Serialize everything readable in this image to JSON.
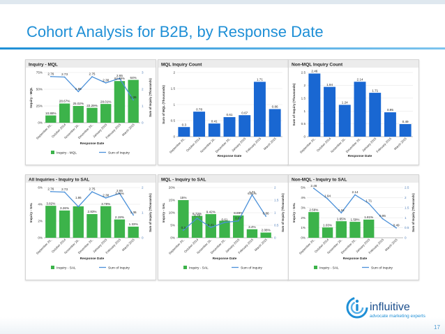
{
  "slide": {
    "title": "Cohort Analysis for B2B, by Response Date",
    "page_number": "17",
    "logo_name": "influitive",
    "logo_tagline": "advocate marketing experts",
    "logo_icon": "influitive-swirl-icon",
    "colors": {
      "title": "#1e8fd6",
      "bar_green": "#3cb34a",
      "bar_blue": "#1967d2",
      "line_blue": "#4a90d9",
      "header_grey": "#cccccc"
    }
  },
  "chart_data": [
    {
      "id": "inquiry-mql",
      "type": "bar",
      "title": "Inquiry - MQL",
      "xlabel": "Response Date",
      "ylabel": "Inquiry - MQL",
      "y2label": "Sum of Inquiry (Thousands)",
      "categories": [
        "September 20..",
        "October 2014",
        "November 20..",
        "December 20..",
        "January 2015",
        "February 2015",
        "March 2015"
      ],
      "bar_series": {
        "name": "Inquiry - MQL",
        "values": [
          10.88,
          28.67,
          25.02,
          22.29,
          28.01,
          62.28,
          64.0
        ],
        "labels": [
          "10.88%",
          "28.67%",
          "25.02%",
          "22.29%",
          "28.01%",
          "",
          "64%"
        ]
      },
      "line_series": {
        "name": "Sum of Inquiry",
        "values": [
          2.76,
          2.73,
          1.86,
          2.75,
          2.38,
          2.65,
          1.36
        ],
        "labels": [
          "2.76",
          "2.73",
          "1.86",
          "2.75",
          "2.38",
          "2.65",
          "1.36"
        ]
      },
      "yticks": [
        "0%",
        "25%",
        "50%",
        "75%"
      ],
      "ylim": [
        0,
        75
      ],
      "y2ticks": [
        "0",
        "1",
        "2",
        "3"
      ],
      "y2lim": [
        0,
        3
      ],
      "extra_labels": [
        "62.28%"
      ],
      "legend": "bottom"
    },
    {
      "id": "mql-inquiry-count",
      "type": "bar",
      "title": "MQL Inquiry Count",
      "xlabel": "Response Date",
      "ylabel": "Sum of MQL (Thousands)",
      "categories": [
        "September 20..",
        "October 2014",
        "November 20..",
        "December 20..",
        "January 2015",
        "February 2015",
        "March 2015"
      ],
      "bar_series": {
        "name": "MQL",
        "values": [
          0.3,
          0.78,
          0.41,
          0.61,
          0.67,
          1.71,
          0.86
        ],
        "labels": [
          "0.3",
          "0.78",
          "0.41",
          "0.61",
          "0.67",
          "1.71",
          "0.86"
        ]
      },
      "yticks": [
        "0",
        "0.5",
        "1",
        "1.5",
        "2"
      ],
      "ylim": [
        0,
        2
      ]
    },
    {
      "id": "non-mql-inquiry-count",
      "type": "bar",
      "title": "Non-MQL Inquiry Count",
      "xlabel": "Response Date",
      "ylabel": "Sum of Inquiry (Thousands)",
      "categories": [
        "September 20..",
        "October 2014",
        "November 20..",
        "December 20..",
        "January 2015",
        "February 2015",
        "March 2015"
      ],
      "bar_series": {
        "name": "Non-MQL",
        "values": [
          2.46,
          1.94,
          1.24,
          2.14,
          1.71,
          0.95,
          0.49
        ],
        "labels": [
          "2.46",
          "1.94",
          "1.24",
          "2.14",
          "1.71",
          "0.95",
          "0.49"
        ]
      },
      "yticks": [
        "0",
        "0.5",
        "1",
        "1.5",
        "2",
        "2.5"
      ],
      "ylim": [
        0,
        2.5
      ]
    },
    {
      "id": "all-inquiries-to-sal",
      "type": "bar",
      "title": "All Inquiries - Inquiry to SAL",
      "xlabel": "Response Date",
      "ylabel": "Inquiry - SAL",
      "y2label": "Sum of Inquiry (Thousands)",
      "categories": [
        "September 20..",
        "October 2014",
        "November 20..",
        "December 20..",
        "January 2015",
        "February 2015",
        "March 2015"
      ],
      "bar_series": {
        "name": "Inquiry - SAL",
        "values": [
          3.82,
          3.26,
          3.76,
          2.83,
          3.78,
          2.19,
          1.33
        ],
        "labels": [
          "3.82%",
          "3.26%",
          "",
          "2.83%",
          "3.78%",
          "2.19%",
          "1.33%"
        ]
      },
      "line_series": {
        "name": "Sum of Inquiry",
        "values": [
          2.76,
          2.73,
          1.86,
          2.75,
          2.38,
          2.65,
          1.36
        ],
        "labels": [
          "2.76",
          "2.73",
          "",
          "2.75",
          "2.38",
          "2.65",
          "1.36"
        ]
      },
      "yticks": [
        "0%",
        "2%",
        "4%",
        "6%"
      ],
      "ylim": [
        0,
        6
      ],
      "y2ticks": [
        "0",
        "1",
        "2"
      ],
      "y2lim": [
        0,
        3
      ],
      "extra_labels": [
        "3.76%",
        "1.86"
      ],
      "legend": "bottom"
    },
    {
      "id": "mql-inquiry-to-sal",
      "type": "bar",
      "title": "MQL - Inquiry to SAL",
      "xlabel": "Response Date",
      "ylabel": "Inquiry - SAL",
      "y2label": "Sum of Inquiry (Thousands)",
      "categories": [
        "September 20..",
        "October 2014",
        "November 20..",
        "December 20..",
        "January 2015",
        "February 2015",
        "March 2015"
      ],
      "bar_series": {
        "name": "Inquiry - SAL",
        "values": [
          15.0,
          8.73,
          9.42,
          6.81,
          8.89,
          3.4,
          2.08
        ],
        "labels": [
          "15%",
          "8.73%",
          "9.42%",
          "",
          "8.89%",
          "3.4%",
          "2.08%"
        ]
      },
      "line_series": {
        "name": "Sum of Inquiry",
        "values": [
          0.3,
          0.78,
          0.41,
          0.61,
          0.67,
          1.71,
          0.86
        ],
        "labels": [
          "0.3",
          "0.78",
          "0.41",
          "0.61",
          "0.67",
          "1.71",
          "0.86"
        ]
      },
      "yticks": [
        "0%",
        "5%",
        "10%",
        "15%",
        "20%"
      ],
      "ylim": [
        0,
        20
      ],
      "y2ticks": [
        "0",
        "0.5",
        "1",
        "1.5",
        "2"
      ],
      "y2lim": [
        0,
        2
      ],
      "extra_labels": [
        "6.81%"
      ],
      "legend": "bottom"
    },
    {
      "id": "non-mql-inquiry-to-sal",
      "type": "bar",
      "title": "Non-MQL - Inquiry to SAL",
      "xlabel": "Response Date",
      "ylabel": "Inquiry - SAL",
      "y2label": "Sum of Inquiry (Thousands)",
      "categories": [
        "September 20..",
        "October 2014",
        "November 20..",
        "December 20..",
        "January 2015",
        "February 2015",
        "March 2015"
      ],
      "bar_series": {
        "name": "Inquiry - SAL",
        "values": [
          2.56,
          1.03,
          1.65,
          1.59,
          1.81,
          0.0,
          0.0
        ],
        "labels": [
          "2.56%",
          "1.03%",
          "1.65%",
          "1.59%",
          "1.81%",
          "",
          ""
        ]
      },
      "line_series": {
        "name": "Sum of Inquiry",
        "values": [
          2.46,
          1.94,
          1.24,
          2.14,
          1.71,
          0.95,
          0.49
        ],
        "labels": [
          "2.46",
          "1.94",
          "1.24",
          "2.14",
          "1.71",
          "0.95",
          "0.49"
        ]
      },
      "yticks": [
        "0%",
        "1%",
        "2%",
        "3%",
        "4%",
        "5%"
      ],
      "ylim": [
        0,
        5
      ],
      "y2ticks": [
        "0",
        "0.5",
        "1",
        "1.5",
        "2",
        "2.5"
      ],
      "y2lim": [
        0,
        2.5
      ],
      "legend": "bottom"
    }
  ]
}
